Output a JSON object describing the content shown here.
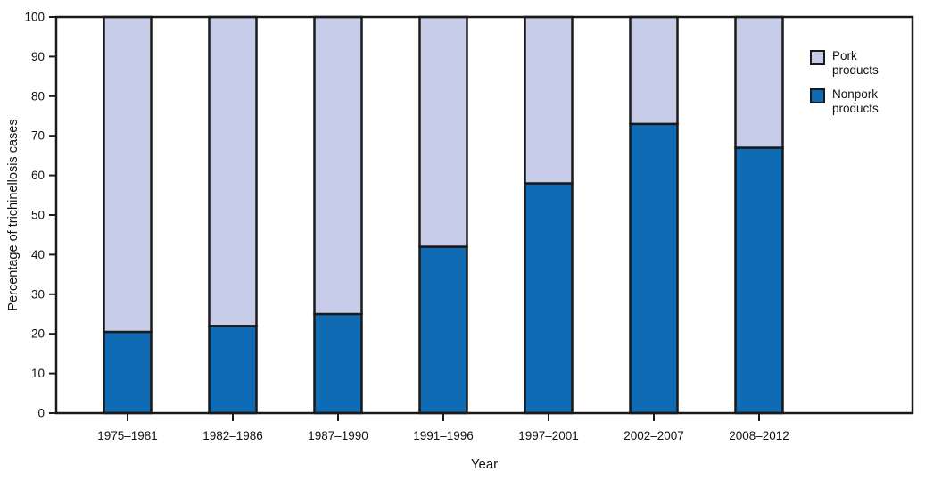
{
  "chart_data": {
    "type": "bar",
    "stacked": true,
    "title": "",
    "xlabel": "Year",
    "ylabel": "Percentage of trichinellosis cases",
    "categories": [
      "1975–1981",
      "1982–1986",
      "1987–1990",
      "1991–1996",
      "1997–2001",
      "2002–2007",
      "2008–2012"
    ],
    "series": [
      {
        "name": "Pork products",
        "color": "#c7cde9",
        "values": [
          79.5,
          78,
          75,
          58,
          42,
          27,
          33
        ]
      },
      {
        "name": "Nonpork products",
        "color": "#0f6cb4",
        "values": [
          20.5,
          22,
          25,
          42,
          58,
          73,
          67
        ]
      }
    ],
    "ylim": [
      0,
      100
    ],
    "yticks": [
      0,
      10,
      20,
      30,
      40,
      50,
      60,
      70,
      80,
      90,
      100
    ],
    "grid": false,
    "legend_position": "top-right",
    "frame_color": "#1a1a1a",
    "legend": [
      {
        "label": "Pork products"
      },
      {
        "label": "Nonpork products"
      }
    ]
  }
}
